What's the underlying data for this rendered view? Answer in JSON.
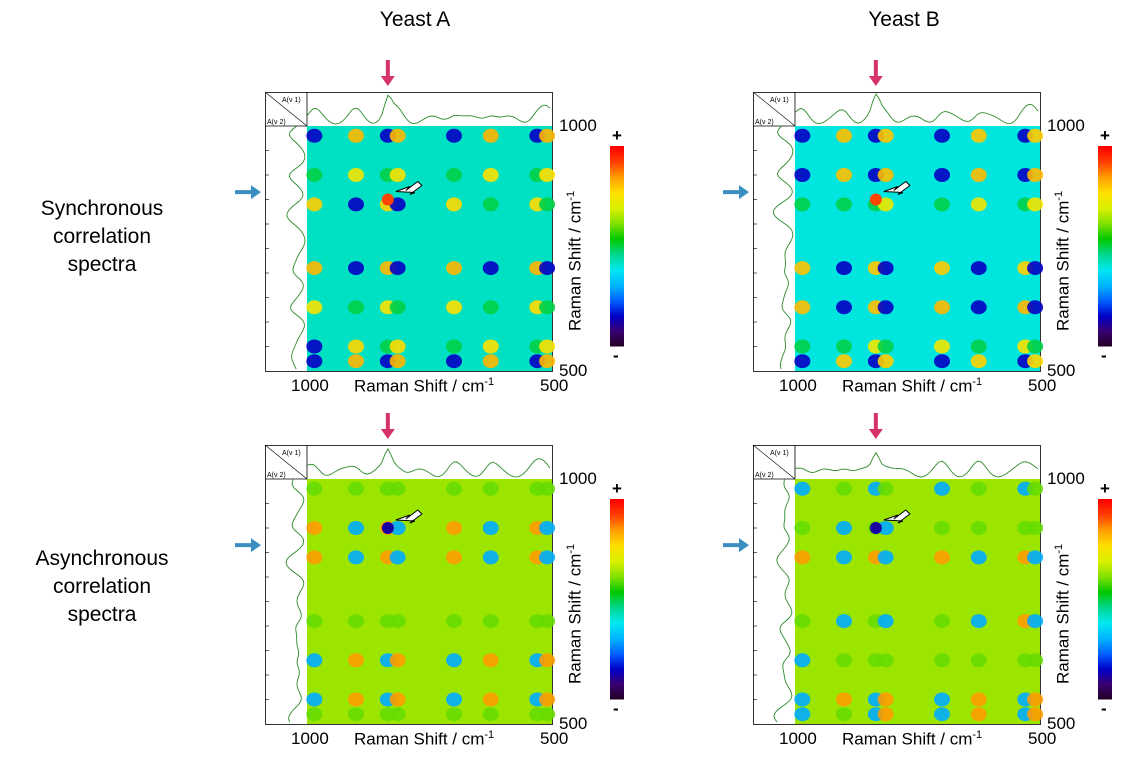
{
  "column_titles": [
    "Yeast A",
    "Yeast B"
  ],
  "row_labels": [
    [
      "Synchronous",
      "correlation",
      "spectra"
    ],
    [
      "Asynchronous",
      "correlation",
      "spectra"
    ]
  ],
  "axis": {
    "x_label": "Raman Shift / cm",
    "y_label": "Raman Shift / cm",
    "unit_sup": "-1",
    "x_min_label": "1000",
    "x_max_label": "500",
    "y_top_label": "1000",
    "y_bottom_label": "500"
  },
  "corner_labels": {
    "top": "A(ν 1)",
    "bottom": "A(ν 2)"
  },
  "colorbar": {
    "plus": "+",
    "minus": "-"
  },
  "colors": {
    "pink_arrow": "#d6336c",
    "blue_arrow": "#3b8fc0",
    "spectrum_line": "#2e8b2e",
    "colormap": [
      "#200020",
      "#3a0070",
      "#0000c8",
      "#0060ff",
      "#00b4ff",
      "#00e8f0",
      "#00d890",
      "#00c800",
      "#80e000",
      "#d8f000",
      "#ffe000",
      "#ffa000",
      "#ff4000",
      "#ff0000"
    ]
  },
  "chart_data": [
    {
      "type": "heatmap",
      "title": "Yeast A",
      "row_label": "Synchronous correlation spectra",
      "xlim": [
        1000,
        500
      ],
      "ylim": [
        1000,
        500
      ],
      "background_level": 0.42,
      "highlight_arrow_at": [
        840,
        880
      ]
    },
    {
      "type": "heatmap",
      "title": "Yeast B",
      "row_label": "Synchronous correlation spectra",
      "xlim": [
        1000,
        500
      ],
      "ylim": [
        1000,
        500
      ],
      "background_level": 0.4,
      "highlight_arrow_at": [
        845,
        880
      ]
    },
    {
      "type": "heatmap",
      "title": "Yeast A",
      "row_label": "Asynchronous correlation spectra",
      "xlim": [
        1000,
        500
      ],
      "ylim": [
        1000,
        500
      ],
      "background_level": 0.64,
      "highlight_arrow_at": [
        840,
        875
      ]
    },
    {
      "type": "heatmap",
      "title": "Yeast B",
      "row_label": "Asynchronous correlation spectra",
      "xlim": [
        1000,
        500
      ],
      "ylim": [
        1000,
        500
      ],
      "background_level": 0.64,
      "highlight_arrow_at": [
        845,
        875
      ]
    }
  ]
}
